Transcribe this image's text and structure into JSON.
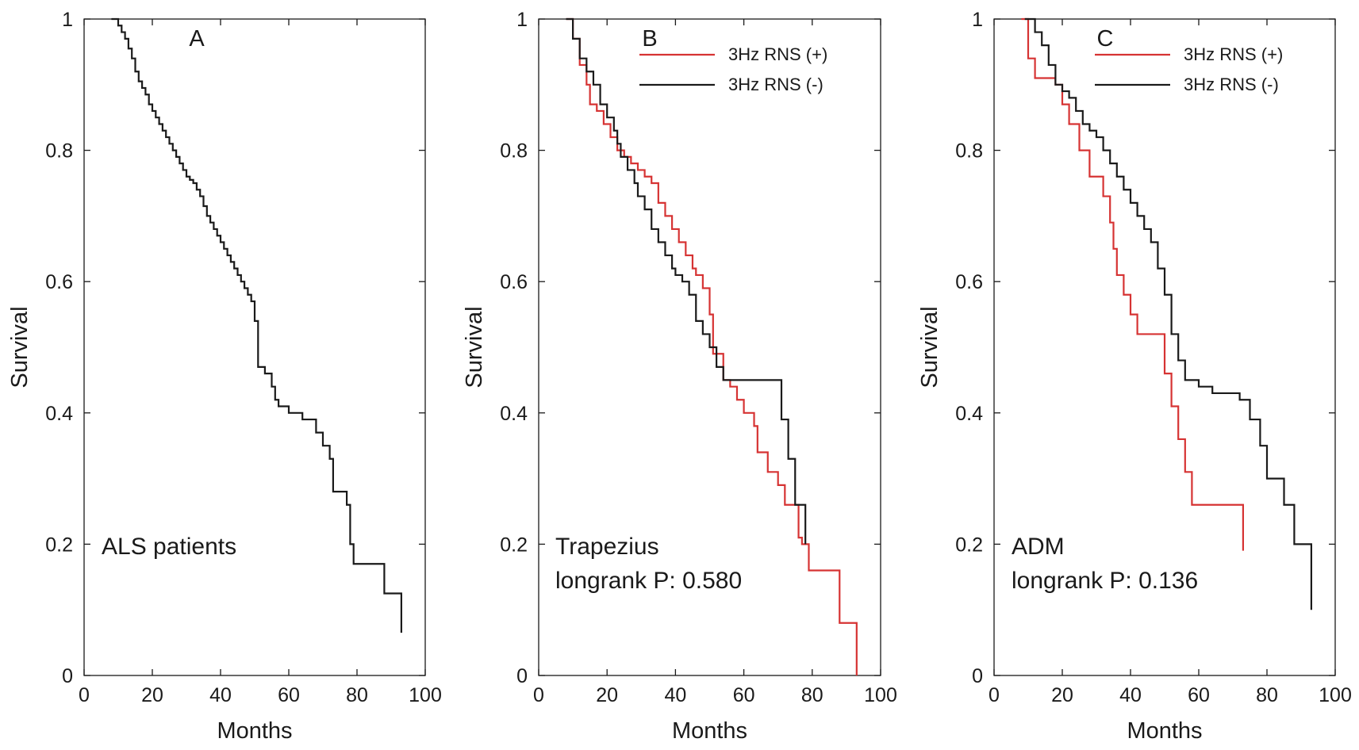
{
  "colors": {
    "black_series": "#1a1a1a",
    "red_series": "#d63333",
    "axis": "#1a1a1a"
  },
  "chart_data": [
    {
      "type": "line",
      "panel": "A",
      "xlabel": "Months",
      "ylabel": "Survival",
      "xlim": [
        0,
        100
      ],
      "ylim": [
        0,
        1
      ],
      "xticks": [
        0,
        20,
        40,
        60,
        80,
        100
      ],
      "yticks": [
        0,
        0.2,
        0.4,
        0.6,
        0.8,
        1
      ],
      "annotations": [
        "ALS patients"
      ],
      "legend": null,
      "series": [
        {
          "name": "ALS patients",
          "color": "#1a1a1a",
          "x": [
            8,
            10,
            11,
            12,
            13,
            14,
            15,
            16,
            17,
            18,
            19,
            20,
            21,
            22,
            23,
            24,
            25,
            26,
            27,
            28,
            29,
            30,
            31,
            32,
            33,
            34,
            35,
            36,
            37,
            38,
            39,
            40,
            41,
            42,
            43,
            44,
            45,
            46,
            47,
            48,
            49,
            50,
            51,
            53,
            55,
            56,
            57,
            60,
            64,
            68,
            70,
            72,
            73,
            77,
            78,
            79,
            88,
            93
          ],
          "y": [
            1,
            0.99,
            0.98,
            0.97,
            0.955,
            0.94,
            0.92,
            0.905,
            0.895,
            0.885,
            0.87,
            0.86,
            0.85,
            0.84,
            0.83,
            0.82,
            0.81,
            0.8,
            0.79,
            0.78,
            0.77,
            0.76,
            0.755,
            0.75,
            0.74,
            0.73,
            0.715,
            0.7,
            0.69,
            0.68,
            0.67,
            0.66,
            0.65,
            0.64,
            0.63,
            0.62,
            0.61,
            0.6,
            0.59,
            0.58,
            0.57,
            0.54,
            0.47,
            0.46,
            0.44,
            0.42,
            0.41,
            0.4,
            0.39,
            0.37,
            0.35,
            0.33,
            0.28,
            0.26,
            0.2,
            0.17,
            0.125,
            0.065
          ]
        }
      ]
    },
    {
      "type": "line",
      "panel": "B",
      "xlabel": "Months",
      "ylabel": "Survival",
      "xlim": [
        0,
        100
      ],
      "ylim": [
        0,
        1
      ],
      "xticks": [
        0,
        20,
        40,
        60,
        80,
        100
      ],
      "yticks": [
        0,
        0.2,
        0.4,
        0.6,
        0.8,
        1
      ],
      "annotations": [
        "Trapezius",
        "longrank P: 0.580"
      ],
      "legend": [
        "3Hz RNS (+)",
        "3Hz RNS (-)"
      ],
      "series": [
        {
          "name": "3Hz RNS (+)",
          "color": "#d63333",
          "x": [
            8,
            10,
            12,
            14,
            15,
            17,
            19,
            21,
            23,
            25,
            27,
            29,
            31,
            33,
            35,
            37,
            39,
            41,
            43,
            45,
            46,
            48,
            50,
            51,
            54,
            56,
            58,
            60,
            63,
            64,
            67,
            70,
            72,
            76,
            77,
            79,
            81,
            86,
            88,
            93
          ],
          "y": [
            1,
            0.97,
            0.93,
            0.9,
            0.87,
            0.86,
            0.84,
            0.82,
            0.8,
            0.79,
            0.78,
            0.77,
            0.76,
            0.75,
            0.72,
            0.7,
            0.68,
            0.66,
            0.64,
            0.62,
            0.61,
            0.59,
            0.55,
            0.49,
            0.45,
            0.44,
            0.42,
            0.4,
            0.38,
            0.34,
            0.31,
            0.29,
            0.26,
            0.21,
            0.2,
            0.16,
            0.16,
            0.16,
            0.08,
            0
          ]
        },
        {
          "name": "3Hz RNS (-)",
          "color": "#1a1a1a",
          "x": [
            8,
            10,
            12,
            14,
            16,
            18,
            20,
            22,
            23,
            24,
            26,
            28,
            29,
            31,
            33,
            35,
            37,
            39,
            40,
            42,
            44,
            46,
            48,
            50,
            52,
            54,
            71,
            73,
            75,
            78
          ],
          "y": [
            1,
            0.97,
            0.94,
            0.92,
            0.9,
            0.87,
            0.85,
            0.83,
            0.81,
            0.79,
            0.77,
            0.75,
            0.73,
            0.71,
            0.68,
            0.66,
            0.64,
            0.62,
            0.61,
            0.6,
            0.58,
            0.54,
            0.52,
            0.5,
            0.47,
            0.45,
            0.39,
            0.33,
            0.26,
            0.2
          ]
        }
      ]
    },
    {
      "type": "line",
      "panel": "C",
      "xlabel": "Months",
      "ylabel": "Survival",
      "xlim": [
        0,
        100
      ],
      "ylim": [
        0,
        1
      ],
      "xticks": [
        0,
        20,
        40,
        60,
        80,
        100
      ],
      "yticks": [
        0,
        0.2,
        0.4,
        0.6,
        0.8,
        1
      ],
      "annotations": [
        "ADM",
        "longrank P: 0.136"
      ],
      "legend": [
        "3Hz RNS (+)",
        "3Hz RNS (-)"
      ],
      "series": [
        {
          "name": "3Hz RNS (+)",
          "color": "#d63333",
          "x": [
            8,
            10,
            12,
            18,
            20,
            22,
            25,
            28,
            32,
            34,
            35,
            36,
            38,
            40,
            42,
            50,
            52,
            54,
            56,
            58,
            73
          ],
          "y": [
            1,
            0.94,
            0.91,
            0.9,
            0.87,
            0.84,
            0.8,
            0.76,
            0.73,
            0.69,
            0.65,
            0.61,
            0.58,
            0.55,
            0.52,
            0.46,
            0.41,
            0.36,
            0.31,
            0.26,
            0.19
          ]
        },
        {
          "name": "3Hz RNS (-)",
          "color": "#1a1a1a",
          "x": [
            9,
            12,
            14,
            16,
            18,
            20,
            22,
            24,
            26,
            28,
            30,
            32,
            34,
            36,
            38,
            40,
            42,
            44,
            46,
            48,
            50,
            52,
            54,
            56,
            60,
            64,
            68,
            72,
            75,
            78,
            80,
            85,
            88,
            93
          ],
          "y": [
            1,
            0.98,
            0.96,
            0.93,
            0.9,
            0.89,
            0.88,
            0.86,
            0.84,
            0.83,
            0.82,
            0.8,
            0.78,
            0.76,
            0.74,
            0.72,
            0.7,
            0.68,
            0.66,
            0.62,
            0.58,
            0.52,
            0.48,
            0.45,
            0.44,
            0.43,
            0.43,
            0.42,
            0.39,
            0.35,
            0.3,
            0.26,
            0.2,
            0.1
          ]
        }
      ]
    }
  ]
}
